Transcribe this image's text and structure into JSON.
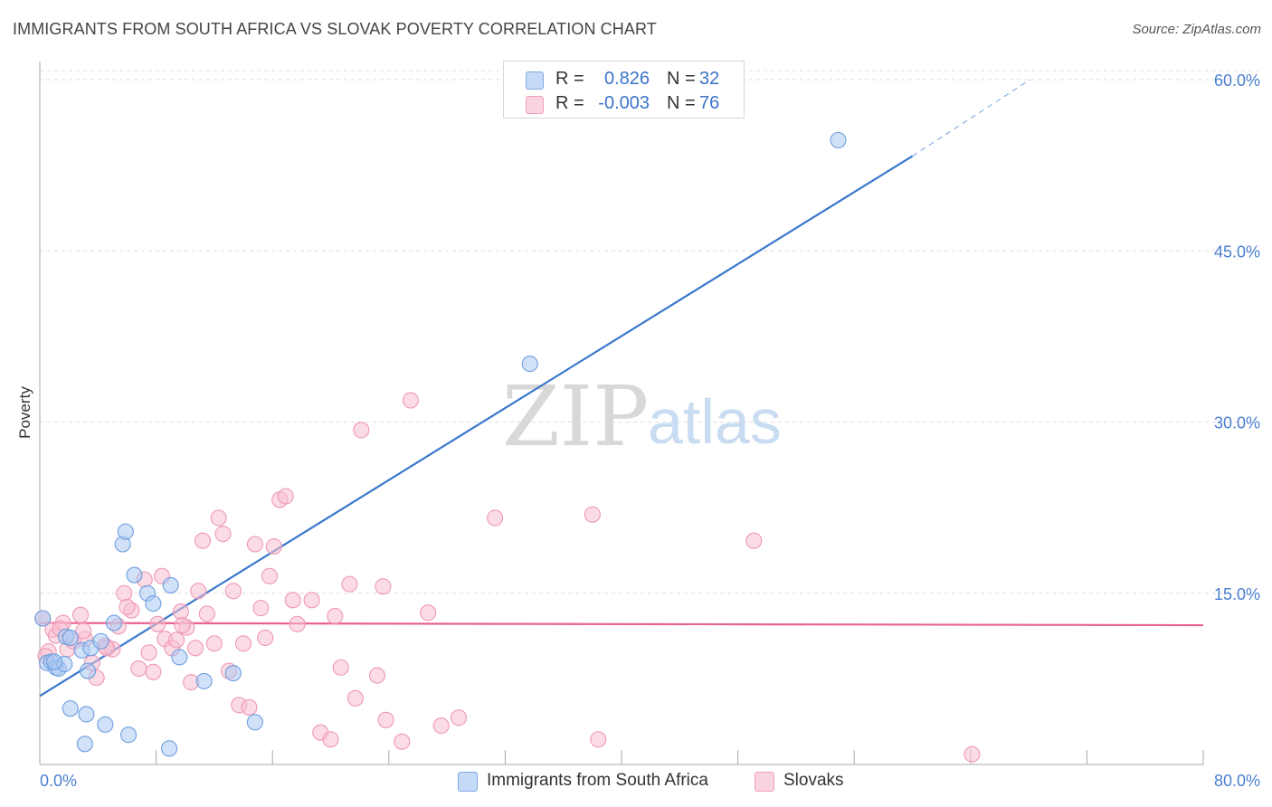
{
  "header": {
    "title": "IMMIGRANTS FROM SOUTH AFRICA VS SLOVAK POVERTY CORRELATION CHART",
    "source": "Source: ZipAtlas.com"
  },
  "watermark": {
    "zip": "ZIP",
    "atlas": "atlas"
  },
  "legend": {
    "rows": [
      {
        "r_label": "R =",
        "r_value": "0.826",
        "n_label": "N =",
        "n_value": "32",
        "color": "#a9c8f2"
      },
      {
        "r_label": "R =",
        "r_value": "-0.003",
        "n_label": "N =",
        "n_value": "76",
        "color": "#f7bfd0"
      }
    ]
  },
  "bottom_legend": {
    "items": [
      {
        "label": "Immigrants from South Africa",
        "color": "#a9c8f2"
      },
      {
        "label": "Slovaks",
        "color": "#f7bfd0"
      }
    ]
  },
  "colors": {
    "blue_line": "#3b78cc",
    "pink_line": "#e8638e",
    "blue_fill": "#a9c8f2",
    "pink_fill": "#f7bfd0",
    "grid": "#dddddd",
    "tick_text": "#4a7fd0"
  },
  "chart_data": {
    "type": "scatter",
    "title": "IMMIGRANTS FROM SOUTH AFRICA VS SLOVAK POVERTY CORRELATION CHART",
    "xlabel": "",
    "ylabel": "Poverty",
    "xlim": [
      0,
      80
    ],
    "ylim": [
      0,
      60
    ],
    "x_tick_labels": [
      "0.0%",
      "80.0%"
    ],
    "y_ticks": [
      15,
      30,
      45,
      60
    ],
    "y_tick_labels": [
      "15.0%",
      "30.0%",
      "45.0%",
      "60.0%"
    ],
    "grid": true,
    "series": [
      {
        "name": "Immigrants from South Africa",
        "points": [
          [
            0.2,
            12.8
          ],
          [
            0.5,
            8.9
          ],
          [
            0.8,
            9.0
          ],
          [
            1.1,
            8.5
          ],
          [
            1.3,
            8.4
          ],
          [
            1.8,
            11.2
          ],
          [
            2.1,
            11.1
          ],
          [
            2.9,
            10.0
          ],
          [
            3.3,
            8.2
          ],
          [
            3.5,
            10.2
          ],
          [
            4.2,
            10.8
          ],
          [
            5.1,
            12.4
          ],
          [
            5.7,
            19.3
          ],
          [
            5.9,
            20.4
          ],
          [
            6.5,
            16.6
          ],
          [
            7.4,
            15.0
          ],
          [
            7.8,
            14.1
          ],
          [
            9.0,
            15.7
          ],
          [
            9.6,
            9.4
          ],
          [
            11.3,
            7.3
          ],
          [
            13.3,
            8.0
          ],
          [
            1.7,
            8.8
          ],
          [
            2.1,
            4.9
          ],
          [
            3.2,
            4.4
          ],
          [
            4.5,
            3.5
          ],
          [
            6.1,
            2.6
          ],
          [
            3.1,
            1.8
          ],
          [
            8.9,
            1.4
          ],
          [
            14.8,
            3.7
          ],
          [
            1.0,
            9.0
          ],
          [
            33.7,
            35.1
          ],
          [
            54.9,
            54.7
          ]
        ]
      },
      {
        "name": "Slovaks",
        "points": [
          [
            0.2,
            12.8
          ],
          [
            0.6,
            9.9
          ],
          [
            0.9,
            11.8
          ],
          [
            1.1,
            11.3
          ],
          [
            1.6,
            12.4
          ],
          [
            1.9,
            10.1
          ],
          [
            2.3,
            10.8
          ],
          [
            2.8,
            13.1
          ],
          [
            3.1,
            11.0
          ],
          [
            3.6,
            8.9
          ],
          [
            3.9,
            7.6
          ],
          [
            4.5,
            10.4
          ],
          [
            5.0,
            10.1
          ],
          [
            5.4,
            12.1
          ],
          [
            5.8,
            15.0
          ],
          [
            6.3,
            13.5
          ],
          [
            6.8,
            8.4
          ],
          [
            7.2,
            16.2
          ],
          [
            7.5,
            9.8
          ],
          [
            7.8,
            8.1
          ],
          [
            8.1,
            12.3
          ],
          [
            8.4,
            16.5
          ],
          [
            8.6,
            11.0
          ],
          [
            9.1,
            10.2
          ],
          [
            9.4,
            10.9
          ],
          [
            9.7,
            13.4
          ],
          [
            10.1,
            12.0
          ],
          [
            10.4,
            7.2
          ],
          [
            10.7,
            10.2
          ],
          [
            10.9,
            15.2
          ],
          [
            11.2,
            19.6
          ],
          [
            11.5,
            13.2
          ],
          [
            12.0,
            10.6
          ],
          [
            12.3,
            21.6
          ],
          [
            12.6,
            20.2
          ],
          [
            13.0,
            8.2
          ],
          [
            13.3,
            15.2
          ],
          [
            13.7,
            5.2
          ],
          [
            14.0,
            10.6
          ],
          [
            14.4,
            5.0
          ],
          [
            14.8,
            19.3
          ],
          [
            15.2,
            13.7
          ],
          [
            15.5,
            11.1
          ],
          [
            15.8,
            16.5
          ],
          [
            16.1,
            19.1
          ],
          [
            16.5,
            23.2
          ],
          [
            16.9,
            23.5
          ],
          [
            17.4,
            14.4
          ],
          [
            17.7,
            12.3
          ],
          [
            18.7,
            14.4
          ],
          [
            19.3,
            2.8
          ],
          [
            20.0,
            2.2
          ],
          [
            20.3,
            13.0
          ],
          [
            20.7,
            8.5
          ],
          [
            21.3,
            15.8
          ],
          [
            21.7,
            5.8
          ],
          [
            22.1,
            29.3
          ],
          [
            23.2,
            7.8
          ],
          [
            23.6,
            15.6
          ],
          [
            23.8,
            3.9
          ],
          [
            24.9,
            2.0
          ],
          [
            25.5,
            31.9
          ],
          [
            26.7,
            13.3
          ],
          [
            27.6,
            3.4
          ],
          [
            28.8,
            4.1
          ],
          [
            31.3,
            21.6
          ],
          [
            38.0,
            21.9
          ],
          [
            38.4,
            2.2
          ],
          [
            49.1,
            19.6
          ],
          [
            64.1,
            0.9
          ],
          [
            0.4,
            9.5
          ],
          [
            1.4,
            11.9
          ],
          [
            3.0,
            11.7
          ],
          [
            4.6,
            10.2
          ],
          [
            6.0,
            13.8
          ],
          [
            9.8,
            12.2
          ]
        ]
      }
    ],
    "trend_lines": [
      {
        "series": "Immigrants from South Africa",
        "x": [
          0,
          60
        ],
        "y": [
          6.0,
          53.3
        ],
        "dashed_to": [
          68.1,
          60.0
        ]
      },
      {
        "series": "Slovaks",
        "x": [
          0,
          80
        ],
        "y": [
          12.4,
          12.2
        ]
      }
    ]
  }
}
